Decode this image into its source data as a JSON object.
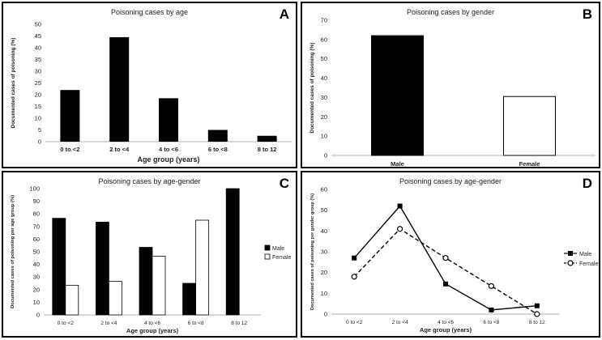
{
  "chart_data": [
    {
      "id": "A",
      "type": "bar",
      "letter": "A",
      "title": "Poisoning cases by age",
      "xlabel": "Age group (years)",
      "ylabel": "Documented cases of poisoning  (%)",
      "categories": [
        "0 to <2",
        "2 to <4",
        "4 to <6",
        "6 to <8",
        "8 to 12"
      ],
      "values": [
        22,
        44.5,
        18.5,
        5,
        2.5
      ],
      "ylim": [
        0,
        50
      ],
      "yticks": [
        "0",
        "5",
        "10",
        "15",
        "20",
        "25",
        "30",
        "35",
        "40",
        "45",
        "50"
      ],
      "grid": false,
      "bar_color": "#000000"
    },
    {
      "id": "B",
      "type": "bar",
      "letter": "B",
      "title": "Poisoning cases by gender",
      "xlabel": "",
      "ylabel": "Documented cases of poisoning (%)",
      "categories": [
        "Male",
        "Female"
      ],
      "values": [
        62,
        30.5
      ],
      "bar_colors": [
        "#000000",
        "#ffffff"
      ],
      "ylim": [
        0,
        70
      ],
      "yticks": [
        "0",
        "10",
        "20",
        "30",
        "40",
        "50",
        "60",
        "70"
      ],
      "grid": false
    },
    {
      "id": "C",
      "type": "bar",
      "letter": "C",
      "title": "Poisoning cases by age-gender",
      "xlabel": "Age group (years)",
      "ylabel": "Documented cases of poisoning per age group (%)",
      "categories": [
        "0 to <2",
        "2 to <4",
        "4 to <6",
        "6 to <8",
        "8 to 12"
      ],
      "series": [
        {
          "name": "Male",
          "values": [
            76.5,
            73.5,
            53.5,
            25,
            100
          ],
          "color": "#000000"
        },
        {
          "name": "Female",
          "values": [
            23.5,
            26.5,
            46.5,
            75,
            0
          ],
          "color": "#ffffff"
        }
      ],
      "ylim": [
        0,
        100
      ],
      "yticks": [
        "0",
        "10",
        "20",
        "30",
        "40",
        "50",
        "60",
        "70",
        "80",
        "90",
        "100"
      ],
      "legend": "right",
      "grid": false
    },
    {
      "id": "D",
      "type": "line",
      "letter": "D",
      "title": "Poisoning cases by age-gender",
      "xlabel": "Age group (years)",
      "ylabel": "Documented cases of poisoning  per gender group (%)",
      "categories": [
        "0 to <2",
        "2 to <4",
        "4 to <6",
        "6 to <8",
        "8 to 12"
      ],
      "series": [
        {
          "name": "Male",
          "values": [
            27,
            52,
            14.5,
            2,
            4
          ],
          "marker": "square",
          "line": "solid"
        },
        {
          "name": "Female",
          "values": [
            18,
            41,
            27,
            13.5,
            0
          ],
          "marker": "circle-open",
          "line": "dashed"
        }
      ],
      "ylim": [
        0,
        60
      ],
      "yticks": [
        "0",
        "10",
        "20",
        "30",
        "40",
        "50",
        "60"
      ],
      "legend": "right",
      "grid": false
    }
  ]
}
